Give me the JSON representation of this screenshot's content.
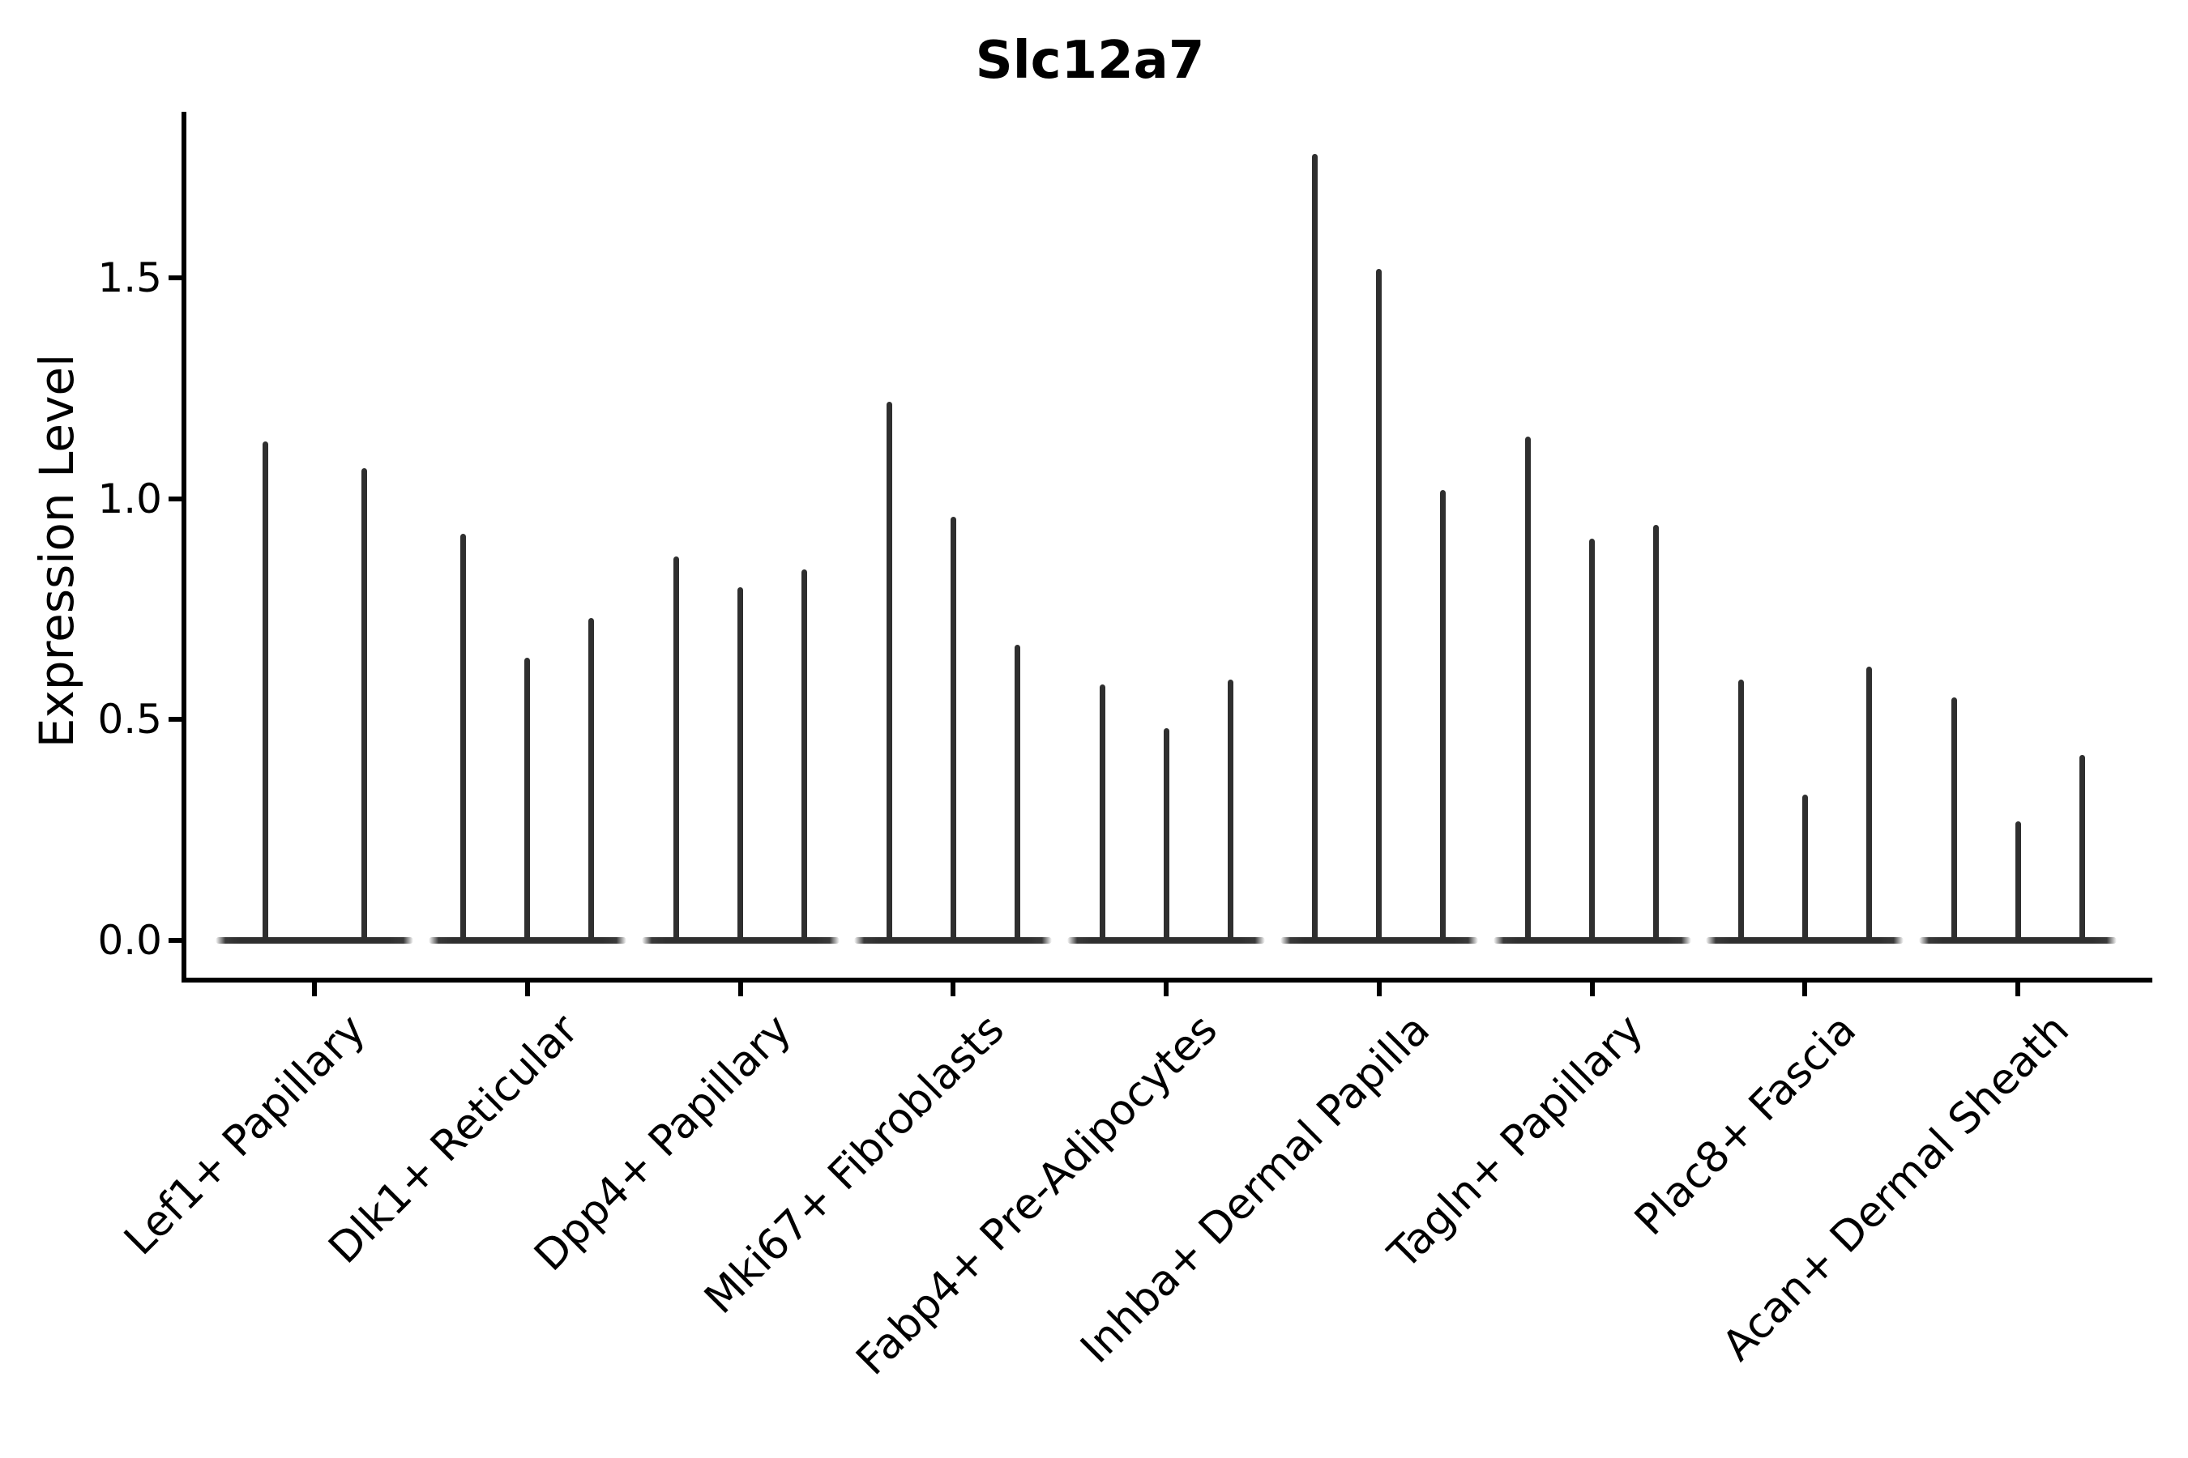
{
  "title": "Slc12a7",
  "ylabel": "Expression Level",
  "chart_data": {
    "type": "violin",
    "title": "Slc12a7",
    "xlabel": "",
    "ylabel": "Expression Level",
    "ylim": [
      0,
      1.87
    ],
    "yticks": [
      0.0,
      0.5,
      1.0,
      1.5
    ],
    "ytick_labels": [
      "0.0",
      "0.5",
      "1.0",
      "1.5"
    ],
    "grid": false,
    "legend": "none",
    "description": "Needle-shaped violins: most cells at 0 expression (flat base), thin spike up to max expression per violin",
    "categories": [
      "Lef1+ Papillary",
      "Dlk1+ Reticular",
      "Dpp4+ Papillary",
      "Mki67+ Fibroblasts",
      "Fabp4+ Pre-Adipocytes",
      "Inhba+ Dermal Papilla",
      "Tagln+ Papillary",
      "Plac8+ Fascia",
      "Acan+ Dermal Sheath"
    ],
    "groups": [
      {
        "label": "Lef1+ Papillary",
        "spike_max_values": [
          1.13,
          1.07
        ]
      },
      {
        "label": "Dlk1+ Reticular",
        "spike_max_values": [
          0.92,
          0.64,
          0.73
        ]
      },
      {
        "label": "Dpp4+ Papillary",
        "spike_max_values": [
          0.87,
          0.8,
          0.84
        ]
      },
      {
        "label": "Mki67+ Fibroblasts",
        "spike_max_values": [
          1.22,
          0.96,
          0.67
        ]
      },
      {
        "label": "Fabp4+ Pre-Adipocytes",
        "spike_max_values": [
          0.58,
          0.48,
          0.59
        ]
      },
      {
        "label": "Inhba+ Dermal Papilla",
        "spike_max_values": [
          1.78,
          1.52,
          1.02
        ]
      },
      {
        "label": "Tagln+ Papillary",
        "spike_max_values": [
          1.14,
          0.91,
          0.94
        ]
      },
      {
        "label": "Plac8+ Fascia",
        "spike_max_values": [
          0.59,
          0.33,
          0.62
        ]
      },
      {
        "label": "Acan+ Dermal Sheath",
        "spike_max_values": [
          0.55,
          0.27,
          0.42
        ]
      }
    ],
    "colors": {
      "violin": "#2f2f2f",
      "axis": "#000000",
      "text": "#000000",
      "background": "#ffffff"
    }
  }
}
